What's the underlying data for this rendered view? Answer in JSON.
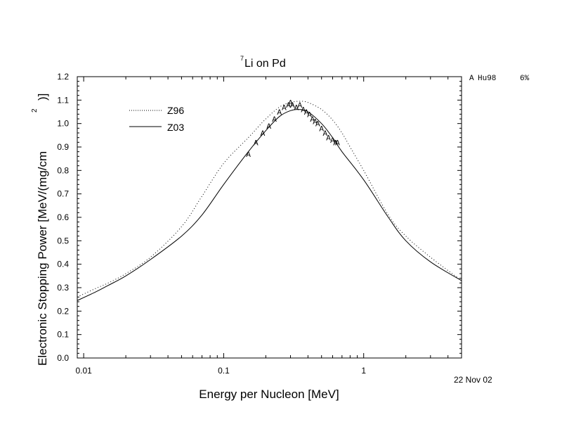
{
  "chart_data": {
    "type": "line",
    "title_sup": "7",
    "title": "Li on Pd",
    "xlabel": "Energy per Nucleon [MeV]",
    "ylabel": "Electronic Stopping Power [MeV/(mg/cm",
    "ylabel_sup": "2",
    "ylabel_end": ")]",
    "x_scale": "log",
    "xlim": [
      0.009,
      5
    ],
    "ylim": [
      0.0,
      1.2
    ],
    "x_ticks": [
      {
        "value": 0.01,
        "label": "0.01"
      },
      {
        "value": 0.1,
        "label": "0.1"
      },
      {
        "value": 1,
        "label": "1"
      }
    ],
    "y_ticks": [
      "0.0",
      "0.1",
      "0.2",
      "0.3",
      "0.4",
      "0.5",
      "0.6",
      "0.7",
      "0.8",
      "0.9",
      "1.0",
      "1.1",
      "1.2"
    ],
    "legend_position": "top-left",
    "series": [
      {
        "name": "Z96",
        "style": "dotted",
        "color": "#000000",
        "x": [
          0.009,
          0.012,
          0.015,
          0.02,
          0.03,
          0.05,
          0.07,
          0.1,
          0.15,
          0.2,
          0.25,
          0.3,
          0.35,
          0.4,
          0.5,
          0.6,
          0.7,
          0.8,
          1.0,
          1.5,
          2.0,
          3.0,
          5.0
        ],
        "y": [
          0.26,
          0.295,
          0.32,
          0.36,
          0.43,
          0.56,
          0.69,
          0.83,
          0.94,
          1.02,
          1.07,
          1.09,
          1.095,
          1.09,
          1.06,
          1.015,
          0.96,
          0.9,
          0.8,
          0.61,
          0.52,
          0.43,
          0.33
        ]
      },
      {
        "name": "Z03",
        "style": "solid",
        "color": "#000000",
        "x": [
          0.009,
          0.012,
          0.015,
          0.02,
          0.03,
          0.05,
          0.07,
          0.1,
          0.15,
          0.2,
          0.25,
          0.3,
          0.35,
          0.4,
          0.5,
          0.6,
          0.7,
          1.0,
          1.5,
          2.0,
          3.0,
          5.0
        ],
        "y": [
          0.245,
          0.28,
          0.31,
          0.35,
          0.42,
          0.52,
          0.61,
          0.74,
          0.88,
          0.97,
          1.03,
          1.055,
          1.06,
          1.05,
          1.0,
          0.94,
          0.88,
          0.76,
          0.6,
          0.5,
          0.41,
          0.33
        ]
      }
    ],
    "data_points": {
      "marker": "A",
      "x": [
        0.15,
        0.17,
        0.19,
        0.21,
        0.23,
        0.25,
        0.27,
        0.29,
        0.3,
        0.31,
        0.33,
        0.35,
        0.37,
        0.39,
        0.41,
        0.43,
        0.45,
        0.47,
        0.5,
        0.53,
        0.56,
        0.6,
        0.63,
        0.65
      ],
      "y": [
        0.87,
        0.92,
        0.96,
        0.99,
        1.02,
        1.05,
        1.07,
        1.08,
        1.09,
        1.08,
        1.07,
        1.08,
        1.06,
        1.05,
        1.04,
        1.02,
        1.01,
        1.0,
        0.98,
        0.96,
        0.94,
        0.93,
        0.92,
        0.92
      ]
    },
    "data_ref": {
      "letter": "A",
      "author": "Hu98",
      "error": "6%"
    },
    "date": "22 Nov 02"
  }
}
